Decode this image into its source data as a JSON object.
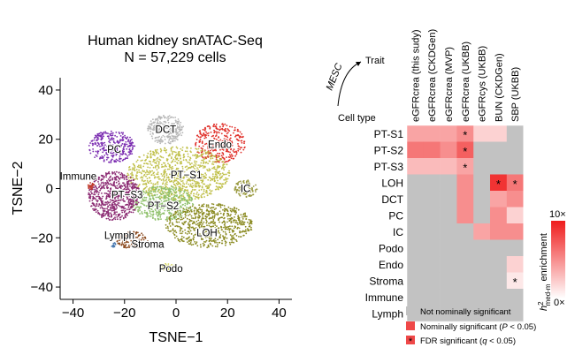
{
  "chart_data": [
    {
      "type": "scatter",
      "title": "Human kidney snATAC-Seq",
      "subtitle": "N = 57,229 cells",
      "xlabel": "TSNE−1",
      "ylabel": "TSNE−2",
      "xlim": [
        -45,
        45
      ],
      "ylim": [
        -45,
        45
      ],
      "xticks": [
        "−40",
        "−20",
        "0",
        "20",
        "40"
      ],
      "yticks": [
        "−40",
        "−20",
        "0",
        "20",
        "40"
      ],
      "xtick_values": [
        -40,
        -20,
        0,
        20,
        40
      ],
      "ytick_values": [
        -40,
        -20,
        0,
        20,
        40
      ],
      "clusters": [
        {
          "name": "DCT",
          "cx": -4,
          "cy": 24,
          "rx": 7,
          "ry": 6,
          "color": "#b8b8b8",
          "n": 260,
          "label": {
            "x": -4,
            "y": 24
          }
        },
        {
          "name": "Endo",
          "cx": 17,
          "cy": 18.5,
          "rx": 10,
          "ry": 8,
          "color": "#e0302a",
          "n": 320,
          "label": {
            "x": 17,
            "y": 18
          }
        },
        {
          "name": "PC",
          "cx": -25,
          "cy": 17,
          "rx": 9,
          "ry": 6.5,
          "color": "#7a2bb0",
          "n": 300,
          "label": {
            "x": -24,
            "y": 16
          }
        },
        {
          "name": "PT−S1",
          "cx": 1,
          "cy": 6,
          "rx": 20,
          "ry": 11,
          "color": "#c0c04a",
          "n": 900,
          "label": {
            "x": 4,
            "y": 5.5
          }
        },
        {
          "name": "PT−S2",
          "cx": -5,
          "cy": -6,
          "rx": 12,
          "ry": 7,
          "color": "#8ec06a",
          "n": 420,
          "label": {
            "x": -5,
            "y": -7
          }
        },
        {
          "name": "PT−S3",
          "cx": -24,
          "cy": -3,
          "rx": 10,
          "ry": 10,
          "color": "#8b2a72",
          "n": 650,
          "label": {
            "x": -19,
            "y": -2.5
          }
        },
        {
          "name": "IC",
          "cx": 27,
          "cy": 0,
          "rx": 4.5,
          "ry": 3.5,
          "color": "#9a9a40",
          "n": 90,
          "label": {
            "x": 27,
            "y": 0
          }
        },
        {
          "name": "Immune",
          "cx": -33,
          "cy": 1,
          "rx": 1.2,
          "ry": 1.4,
          "color": "#c0392b",
          "n": 25,
          "label": {
            "x": -38,
            "y": 5
          }
        },
        {
          "name": "LOH",
          "cx": 13,
          "cy": -15,
          "rx": 17,
          "ry": 9,
          "color": "#8a8a20",
          "n": 650,
          "label": {
            "x": 12,
            "y": -18
          }
        },
        {
          "name": "Stroma",
          "cx": -17,
          "cy": -21,
          "rx": 6,
          "ry": 3.5,
          "color": "#8b4a1f",
          "n": 140,
          "label": {
            "x": -11,
            "y": -22.5
          }
        },
        {
          "name": "Lymph",
          "cx": -24,
          "cy": -23,
          "rx": 1.2,
          "ry": 1,
          "color": "#4a7ab0",
          "n": 12,
          "label": {
            "x": -22,
            "y": -19
          }
        },
        {
          "name": "Podo",
          "cx": -3,
          "cy": -32,
          "rx": 3.5,
          "ry": 1.5,
          "color": "#d4d45a",
          "n": 50,
          "label": {
            "x": -2,
            "y": -32.5
          }
        }
      ]
    },
    {
      "type": "heatmap",
      "column_axis_label": "Trait",
      "row_axis_label": "Cell type",
      "method_label": "MESC",
      "columns": [
        "eGFRcrea (this sudy)",
        "eGFRcrea (CKDGen)",
        "eGFRcrea (MVP)",
        "eGFRcrea (UKBB)",
        "eGFRcys (UKBB)",
        "BUN (CKDGen)",
        "SBP (UKBB)"
      ],
      "rows": [
        "PT-S1",
        "PT-S2",
        "PT-S3",
        "LOH",
        "DCT",
        "PC",
        "IC",
        "Podo",
        "Endo",
        "Stroma",
        "Immune",
        "Lymph"
      ],
      "values": [
        [
          4,
          4,
          4,
          5,
          2,
          2,
          0
        ],
        [
          6,
          6,
          5,
          7,
          0,
          0,
          0
        ],
        [
          3,
          3,
          3,
          4,
          0,
          0,
          0
        ],
        [
          0,
          0,
          0,
          5,
          0,
          9,
          6
        ],
        [
          0,
          0,
          0,
          5,
          0,
          4,
          5
        ],
        [
          0,
          0,
          0,
          5,
          0,
          5,
          2
        ],
        [
          0,
          0,
          0,
          0,
          4,
          5,
          5
        ],
        [
          0,
          0,
          0,
          0,
          0,
          0,
          0
        ],
        [
          0,
          0,
          0,
          0,
          0,
          0,
          2
        ],
        [
          0,
          0,
          0,
          0,
          0,
          0,
          1
        ],
        [
          0,
          0,
          0,
          0,
          0,
          0,
          0
        ],
        [
          0,
          0,
          0,
          0,
          0,
          0,
          0
        ]
      ],
      "fdr_significant": [
        [
          0,
          3
        ],
        [
          1,
          3
        ],
        [
          2,
          3
        ],
        [
          3,
          5
        ],
        [
          3,
          6
        ],
        [
          9,
          6
        ]
      ],
      "colorbar": {
        "min_label": "0×",
        "max_label": "10×",
        "title_main": "h",
        "title_sup": "2",
        "title_sub": "med-m",
        "title_rest": " enrichment",
        "min": 0,
        "max": 10,
        "low_color": "#ffffff",
        "high_color": "#ef1c1c"
      },
      "legend": [
        {
          "label": "Not nominally significant",
          "color": "#c2c2c2",
          "star": false
        },
        {
          "label_parts": [
            "Nominally significant (",
            "P",
            " < 0.05)"
          ],
          "color": "#ef4848",
          "star": false
        },
        {
          "label_parts": [
            "FDR significant (",
            "q",
            " < 0.05)"
          ],
          "color": "#ef4848",
          "star": true
        }
      ],
      "colors": {
        "grey": "#c2c2c2",
        "red": "#ef1c1c"
      }
    }
  ]
}
